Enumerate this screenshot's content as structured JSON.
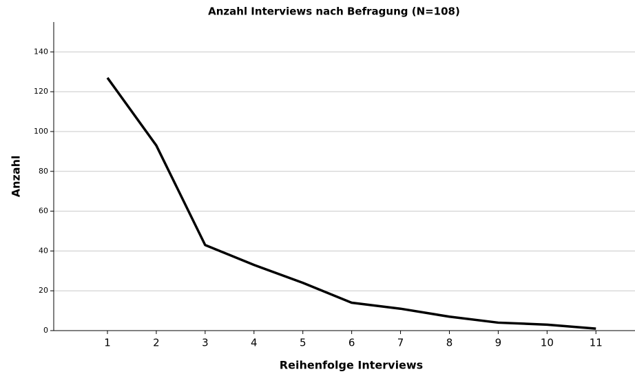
{
  "chart_data": {
    "type": "line",
    "title": "Anzahl Interviews nach Befragung (N=108)",
    "x_label": "Reihenfolge Interviews",
    "y_label": "Anzahl",
    "x": [
      1,
      2,
      3,
      4,
      5,
      6,
      7,
      8,
      9,
      10,
      11
    ],
    "series": [
      {
        "name": "Anzahl",
        "color": "#000000",
        "values": [
          127,
          93,
          43,
          33,
          24,
          14,
          11,
          7,
          4,
          3,
          1
        ]
      }
    ],
    "xlim": [
      -0.1,
      11.8
    ],
    "xticks": [
      1,
      2,
      3,
      4,
      5,
      6,
      7,
      8,
      9,
      10,
      11
    ],
    "ylim": [
      0,
      155
    ],
    "yticks": [
      0,
      20,
      40,
      60,
      80,
      100,
      120,
      140
    ],
    "grid": true
  }
}
